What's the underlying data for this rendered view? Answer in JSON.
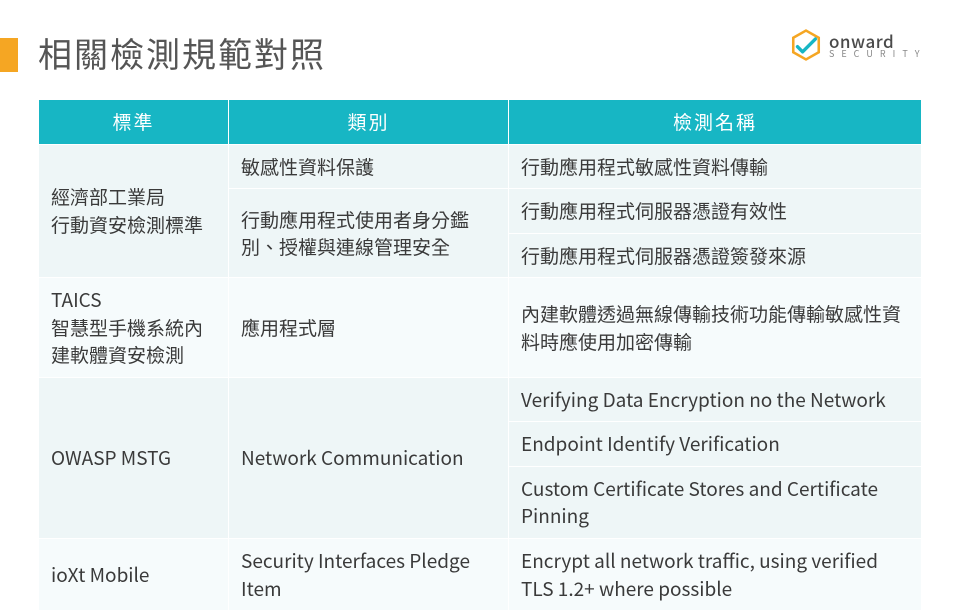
{
  "title": "相關檢測規範對照",
  "logo": {
    "main": "onward",
    "sub": "S E C U R I T Y"
  },
  "colors": {
    "accent_bar": "#f5a623",
    "header_bg": "#17b6c4",
    "header_fg": "#ffffff",
    "band_a": "#eef6f7",
    "band_b": "#f6fbfc",
    "text": "#3a3a3a",
    "title": "#555555",
    "logo_hex_outer": "#f5a623",
    "logo_hex_inner": "#17b6c4"
  },
  "table": {
    "columns": [
      "標準",
      "類別",
      "檢測名稱"
    ],
    "rows": [
      {
        "standard": "經濟部工業局\n行動資安檢測標準",
        "category": "敏感性資料保護",
        "name": "行動應用程式敏感性資料傳輸"
      },
      {
        "category": "行動應用程式使用者身分鑑別、授權與連線管理安全",
        "name": "行動應用程式伺服器憑證有效性"
      },
      {
        "name": "行動應用程式伺服器憑證簽發來源"
      },
      {
        "standard": "TAICS\n智慧型手機系統內建軟體資安檢測",
        "category": "應用程式層",
        "name": "內建軟體透過無線傳輸技術功能傳輸敏感性資料時應使用加密傳輸"
      },
      {
        "standard": "OWASP MSTG",
        "category": "Network Communication",
        "name": "Verifying Data Encryption no the Network"
      },
      {
        "name": "Endpoint Identify Verification"
      },
      {
        "name": "Custom Certificate Stores and Certificate Pinning"
      },
      {
        "standard": "ioXt Mobile",
        "category": "Security Interfaces Pledge Item",
        "name": "Encrypt all network traffic, using verified TLS 1.2+ where possible"
      }
    ]
  }
}
